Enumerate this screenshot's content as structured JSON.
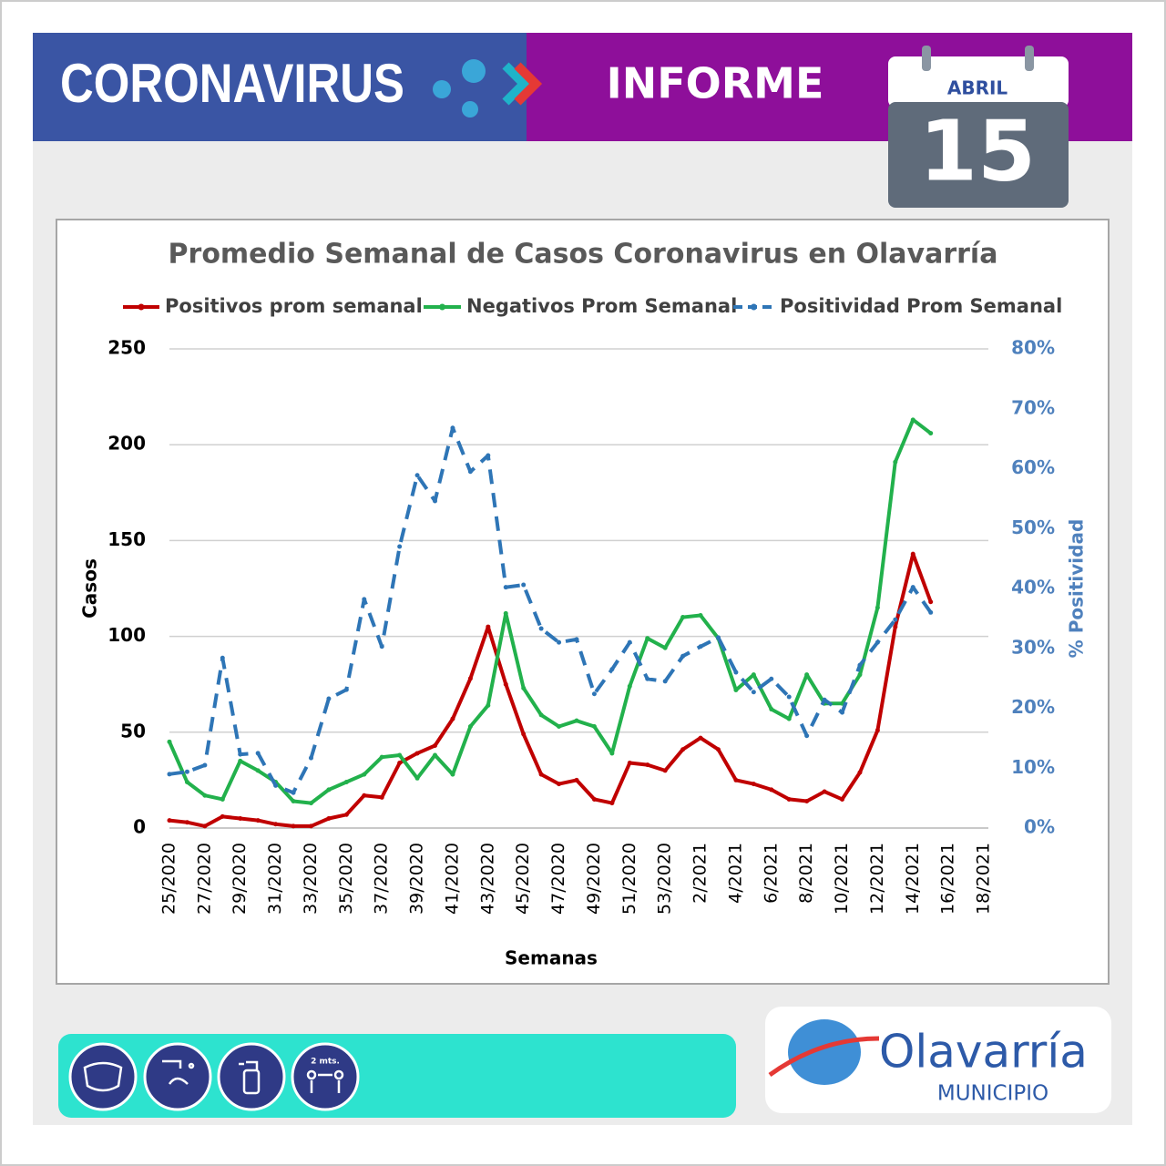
{
  "header": {
    "left": "CORONAVIRUS",
    "right": "INFORME",
    "month": "ABRIL",
    "day": "15"
  },
  "chart_data": {
    "type": "line",
    "title": "Promedio Semanal de Casos Coronavirus en Olavarría",
    "x_label": "Semanas",
    "y_label": "Casos",
    "y2_label": "% Positividad",
    "categories": [
      "25/2020",
      null,
      "27/2020",
      null,
      "29/2020",
      null,
      "31/2020",
      null,
      "33/2020",
      null,
      "35/2020",
      null,
      "37/2020",
      null,
      "39/2020",
      null,
      "41/2020",
      null,
      "43/2020",
      null,
      "45/2020",
      null,
      "47/2020",
      null,
      "49/2020",
      null,
      "51/2020",
      null,
      "53/2020",
      null,
      "2/2021",
      null,
      "4/2021",
      null,
      "6/2021",
      null,
      "8/2021",
      null,
      "10/2021",
      null,
      "12/2021",
      null,
      "14/2021",
      null,
      "16/2021",
      null,
      "18/2021"
    ],
    "ylim": [
      0,
      250
    ],
    "yticks": [
      0,
      50,
      100,
      150,
      200,
      250
    ],
    "y2lim": [
      0,
      80
    ],
    "y2ticks": [
      {
        "value": 0,
        "label": "0%"
      },
      {
        "value": 10,
        "label": "10%"
      },
      {
        "value": 20,
        "label": "20%"
      },
      {
        "value": 30,
        "label": "30%"
      },
      {
        "value": 40,
        "label": "40%"
      },
      {
        "value": 50,
        "label": "50%"
      },
      {
        "value": 60,
        "label": "60%"
      },
      {
        "value": 70,
        "label": "70%"
      },
      {
        "value": 80,
        "label": "80%"
      }
    ],
    "grid": true,
    "series": [
      {
        "name": "Positivos prom semanal",
        "color": "#c00000",
        "dashed": false,
        "values": [
          4,
          3,
          1,
          6,
          5,
          4,
          2,
          1,
          1,
          5,
          7,
          17,
          16,
          34,
          39,
          43,
          57,
          78,
          105,
          75,
          49,
          28,
          23,
          25,
          15,
          13,
          34,
          33,
          30,
          41,
          47,
          41,
          25,
          23,
          20,
          15,
          14,
          19,
          15,
          29,
          51,
          105,
          143,
          118,
          null,
          null,
          null
        ]
      },
      {
        "name": "Negativos Prom Semanal",
        "color": "#22b14c",
        "dashed": false,
        "values": [
          45,
          24,
          17,
          15,
          35,
          30,
          24,
          14,
          13,
          20,
          24,
          28,
          37,
          38,
          26,
          38,
          28,
          53,
          64,
          112,
          73,
          59,
          53,
          56,
          53,
          39,
          74,
          99,
          94,
          110,
          111,
          99,
          72,
          80,
          62,
          57,
          80,
          65,
          65,
          80,
          115,
          191,
          213,
          206,
          null,
          null,
          null
        ]
      },
      {
        "name": "Positividad Prom Semanal",
        "color": "#2e75b6",
        "dashed": true,
        "axis": "y2",
        "values": [
          9,
          9.4,
          10.5,
          28.4,
          12.3,
          12.5,
          7.1,
          5.9,
          11.7,
          21.6,
          23.1,
          38.2,
          30.3,
          47,
          58.9,
          54.6,
          66.8,
          59.5,
          62.2,
          40.2,
          40.6,
          33.3,
          31,
          31.5,
          22.4,
          26.5,
          31,
          24.9,
          24.5,
          28.7,
          30.3,
          31.8,
          26,
          22.7,
          24.9,
          21.9,
          15.4,
          21.4,
          19.3,
          27.2,
          31,
          34.8,
          40.2,
          36,
          null,
          null,
          null
        ]
      }
    ]
  },
  "footer": {
    "distance": "2 mts.",
    "brand": "Olavarría",
    "brand_sub": "MUNICIPIO"
  }
}
